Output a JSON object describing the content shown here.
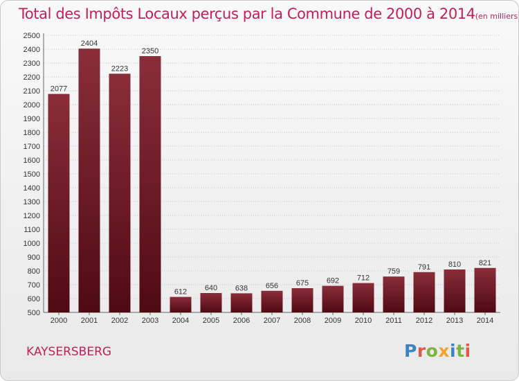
{
  "chart_data": {
    "type": "bar",
    "title": "Total des Impôts Locaux perçus par la Commune de 2000 à 2014",
    "unit_note": "(en milliers d'€)",
    "categories": [
      "2000",
      "2001",
      "2002",
      "2003",
      "2004",
      "2005",
      "2006",
      "2007",
      "2008",
      "2009",
      "2010",
      "2011",
      "2012",
      "2013",
      "2014"
    ],
    "values": [
      2077,
      2404,
      2223,
      2350,
      612,
      640,
      638,
      656,
      675,
      692,
      712,
      759,
      791,
      810,
      821
    ],
    "ylim": [
      500,
      2500
    ],
    "yticks": [
      500,
      600,
      700,
      800,
      900,
      1000,
      1100,
      1200,
      1300,
      1400,
      1500,
      1600,
      1700,
      1800,
      1900,
      2000,
      2100,
      2200,
      2300,
      2400,
      2500
    ],
    "grid": true,
    "bar_color_top": "#8a2d3a",
    "bar_color_bottom": "#4f0a14"
  },
  "commune": "KAYSERSBERG",
  "logo": "Proxiti"
}
